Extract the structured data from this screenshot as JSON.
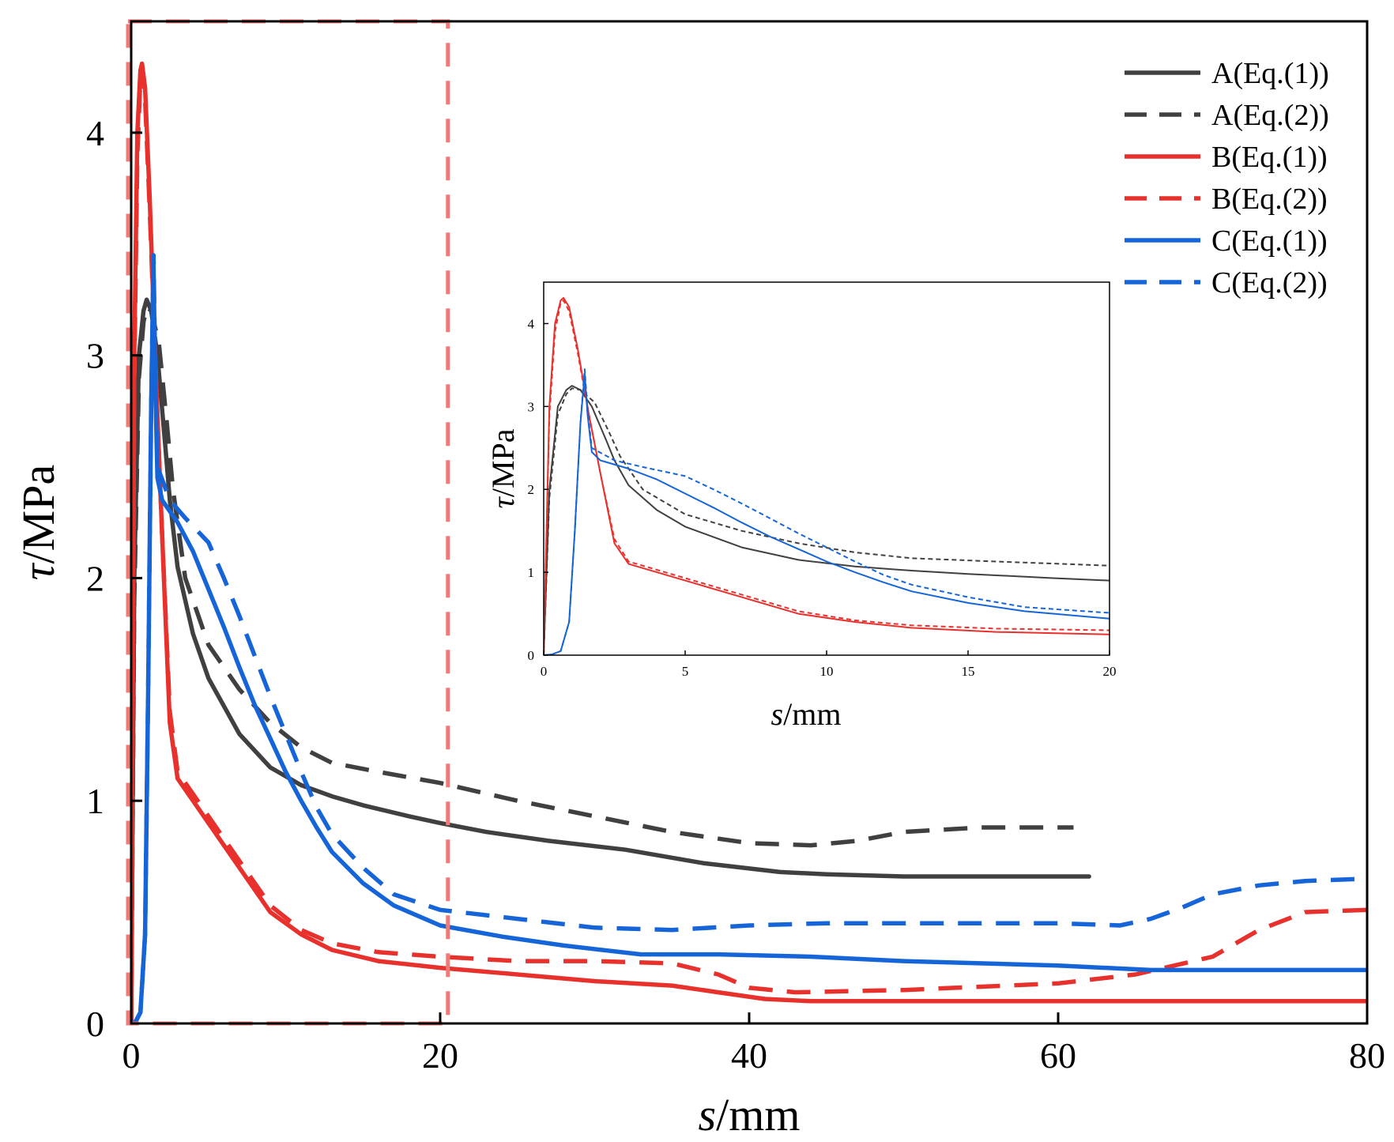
{
  "chart_data": [
    {
      "id": "main",
      "type": "line",
      "xlabel_var": "s",
      "xlabel_unit": "/mm",
      "ylabel_var": "τ",
      "ylabel_unit": "/MPa",
      "xlim": [
        0,
        80
      ],
      "ylim": [
        0,
        4.5
      ],
      "xticks": [
        0,
        20,
        40,
        60,
        80
      ],
      "yticks": [
        0,
        1,
        2,
        3,
        4
      ],
      "grid": false,
      "legend_placement": "top-right",
      "zoom_region": {
        "x": [
          0,
          20.5
        ],
        "y": [
          0,
          4.5
        ]
      },
      "series": [
        {
          "name": "A(Eq.(1))",
          "color": "#404040",
          "dashed": false,
          "points": [
            [
              0,
              0
            ],
            [
              0.2,
              2.0
            ],
            [
              0.5,
              3.0
            ],
            [
              0.8,
              3.2
            ],
            [
              1.0,
              3.25
            ],
            [
              1.3,
              3.2
            ],
            [
              1.7,
              3.0
            ],
            [
              2.2,
              2.6
            ],
            [
              2.5,
              2.35
            ],
            [
              3,
              2.05
            ],
            [
              4,
              1.75
            ],
            [
              5,
              1.55
            ],
            [
              7,
              1.3
            ],
            [
              9,
              1.15
            ],
            [
              11,
              1.07
            ],
            [
              13,
              1.02
            ],
            [
              15,
              0.98
            ],
            [
              18,
              0.93
            ],
            [
              20,
              0.9
            ],
            [
              23,
              0.86
            ],
            [
              27,
              0.82
            ],
            [
              32,
              0.78
            ],
            [
              37,
              0.72
            ],
            [
              42,
              0.68
            ],
            [
              45,
              0.67
            ],
            [
              50,
              0.66
            ],
            [
              62,
              0.66
            ]
          ]
        },
        {
          "name": "A(Eq.(2))",
          "color": "#404040",
          "dashed": true,
          "points": [
            [
              0,
              0
            ],
            [
              0.2,
              1.9
            ],
            [
              0.5,
              2.9
            ],
            [
              0.8,
              3.15
            ],
            [
              1.0,
              3.22
            ],
            [
              1.3,
              3.2
            ],
            [
              1.8,
              3.05
            ],
            [
              2.3,
              2.7
            ],
            [
              2.7,
              2.4
            ],
            [
              3.5,
              2.0
            ],
            [
              5,
              1.7
            ],
            [
              7,
              1.5
            ],
            [
              9,
              1.35
            ],
            [
              11,
              1.24
            ],
            [
              13,
              1.17
            ],
            [
              16,
              1.13
            ],
            [
              20,
              1.08
            ],
            [
              25,
              1.0
            ],
            [
              30,
              0.93
            ],
            [
              35,
              0.86
            ],
            [
              40,
              0.81
            ],
            [
              44,
              0.8
            ],
            [
              47,
              0.82
            ],
            [
              50,
              0.86
            ],
            [
              55,
              0.88
            ],
            [
              61,
              0.88
            ]
          ]
        },
        {
          "name": "B(Eq.(1))",
          "color": "#e8312c",
          "dashed": false,
          "points": [
            [
              0,
              0
            ],
            [
              0.2,
              3.0
            ],
            [
              0.4,
              4.0
            ],
            [
              0.6,
              4.28
            ],
            [
              0.7,
              4.31
            ],
            [
              0.9,
              4.2
            ],
            [
              1.2,
              3.7
            ],
            [
              1.6,
              2.9
            ],
            [
              2.0,
              2.2
            ],
            [
              2.5,
              1.35
            ],
            [
              3,
              1.1
            ],
            [
              5,
              0.9
            ],
            [
              7,
              0.7
            ],
            [
              9,
              0.5
            ],
            [
              11,
              0.4
            ],
            [
              13,
              0.33
            ],
            [
              16,
              0.28
            ],
            [
              20,
              0.25
            ],
            [
              25,
              0.22
            ],
            [
              30,
              0.19
            ],
            [
              35,
              0.17
            ],
            [
              38,
              0.14
            ],
            [
              41,
              0.11
            ],
            [
              44,
              0.1
            ],
            [
              50,
              0.1
            ],
            [
              80,
              0.1
            ]
          ]
        },
        {
          "name": "B(Eq.(2))",
          "color": "#e8312c",
          "dashed": true,
          "points": [
            [
              0,
              0
            ],
            [
              0.2,
              2.9
            ],
            [
              0.4,
              3.9
            ],
            [
              0.6,
              4.25
            ],
            [
              0.7,
              4.28
            ],
            [
              0.9,
              4.15
            ],
            [
              1.2,
              3.65
            ],
            [
              1.6,
              2.9
            ],
            [
              2.0,
              2.2
            ],
            [
              2.5,
              1.4
            ],
            [
              3,
              1.13
            ],
            [
              5,
              0.93
            ],
            [
              7,
              0.73
            ],
            [
              9,
              0.53
            ],
            [
              11,
              0.42
            ],
            [
              13,
              0.36
            ],
            [
              16,
              0.32
            ],
            [
              20,
              0.3
            ],
            [
              25,
              0.28
            ],
            [
              30,
              0.28
            ],
            [
              35,
              0.27
            ],
            [
              38,
              0.22
            ],
            [
              40,
              0.16
            ],
            [
              43,
              0.14
            ],
            [
              50,
              0.15
            ],
            [
              60,
              0.18
            ],
            [
              65,
              0.22
            ],
            [
              70,
              0.3
            ],
            [
              73,
              0.42
            ],
            [
              76,
              0.5
            ],
            [
              80,
              0.51
            ]
          ]
        },
        {
          "name": "C(Eq.(1))",
          "color": "#1565d8",
          "dashed": false,
          "points": [
            [
              0,
              0
            ],
            [
              0.3,
              0.01
            ],
            [
              0.6,
              0.05
            ],
            [
              0.9,
              0.4
            ],
            [
              1.1,
              1.5
            ],
            [
              1.3,
              2.8
            ],
            [
              1.45,
              3.4
            ],
            [
              1.55,
              2.9
            ],
            [
              1.7,
              2.45
            ],
            [
              2,
              2.35
            ],
            [
              3,
              2.25
            ],
            [
              4,
              2.12
            ],
            [
              5,
              1.95
            ],
            [
              6,
              1.78
            ],
            [
              7,
              1.6
            ],
            [
              8,
              1.43
            ],
            [
              9,
              1.28
            ],
            [
              10,
              1.13
            ],
            [
              11,
              1.0
            ],
            [
              12,
              0.88
            ],
            [
              13,
              0.77
            ],
            [
              15,
              0.63
            ],
            [
              17,
              0.53
            ],
            [
              20,
              0.44
            ],
            [
              24,
              0.39
            ],
            [
              28,
              0.35
            ],
            [
              33,
              0.31
            ],
            [
              38,
              0.31
            ],
            [
              44,
              0.3
            ],
            [
              50,
              0.28
            ],
            [
              60,
              0.26
            ],
            [
              66,
              0.24
            ],
            [
              80,
              0.24
            ]
          ]
        },
        {
          "name": "C(Eq.(2))",
          "color": "#1565d8",
          "dashed": true,
          "points": [
            [
              0,
              0
            ],
            [
              0.3,
              0.01
            ],
            [
              0.6,
              0.05
            ],
            [
              0.9,
              0.4
            ],
            [
              1.1,
              1.5
            ],
            [
              1.3,
              2.8
            ],
            [
              1.45,
              3.45
            ],
            [
              1.55,
              2.95
            ],
            [
              1.7,
              2.5
            ],
            [
              2.5,
              2.35
            ],
            [
              3.5,
              2.27
            ],
            [
              5,
              2.16
            ],
            [
              6,
              2.0
            ],
            [
              7,
              1.83
            ],
            [
              8,
              1.65
            ],
            [
              9,
              1.47
            ],
            [
              10,
              1.3
            ],
            [
              11,
              1.13
            ],
            [
              12,
              0.97
            ],
            [
              13,
              0.85
            ],
            [
              15,
              0.7
            ],
            [
              17,
              0.58
            ],
            [
              20,
              0.51
            ],
            [
              25,
              0.47
            ],
            [
              30,
              0.43
            ],
            [
              35,
              0.42
            ],
            [
              40,
              0.44
            ],
            [
              45,
              0.45
            ],
            [
              50,
              0.45
            ],
            [
              55,
              0.45
            ],
            [
              60,
              0.45
            ],
            [
              64,
              0.44
            ],
            [
              66,
              0.47
            ],
            [
              68,
              0.52
            ],
            [
              70,
              0.58
            ],
            [
              73,
              0.62
            ],
            [
              76,
              0.64
            ],
            [
              80,
              0.65
            ]
          ]
        }
      ]
    },
    {
      "id": "inset",
      "type": "line",
      "xlabel_var": "s",
      "xlabel_unit": "/mm",
      "ylabel_var": "τ",
      "ylabel_unit": "/MPa",
      "xlim": [
        0,
        20
      ],
      "ylim": [
        0,
        4.5
      ],
      "xticks": [
        0,
        5,
        10,
        15,
        20
      ],
      "yticks": [
        0,
        1,
        2,
        3,
        4
      ],
      "grid": false,
      "series_ref": "main (zoomed to 0-20 mm)"
    }
  ],
  "colors": {
    "A": "#404040",
    "B": "#e8312c",
    "C": "#1565d8",
    "zoom_box": "#f07a76",
    "axes": "#000000"
  }
}
